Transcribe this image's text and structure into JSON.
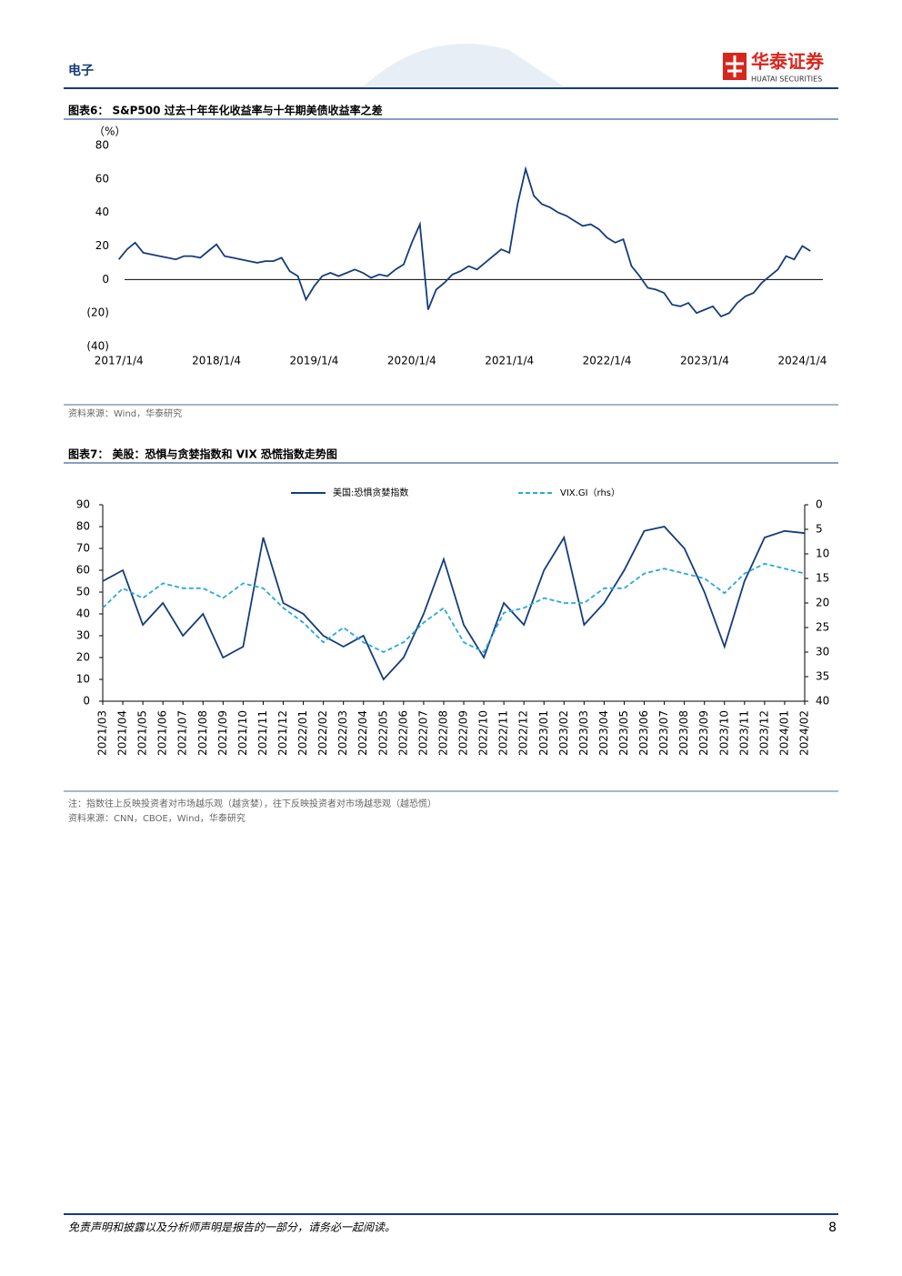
{
  "header": {
    "section": "电子",
    "logo_cn": "华泰证券",
    "logo_en": "HUATAI SECURITIES"
  },
  "chart_data": [
    {
      "type": "line",
      "title": "图表6： S&P500 过去十年年化收益率与十年期美债收益率之差",
      "y_label": "（%）",
      "x": [
        "2017/1/4",
        "2017/2/4",
        "2017/3/4",
        "2017/4/4",
        "2017/5/4",
        "2017/6/4",
        "2017/7/4",
        "2017/8/4",
        "2017/9/4",
        "2017/10/4",
        "2017/11/4",
        "2017/12/4",
        "2018/1/4",
        "2018/2/4",
        "2018/3/4",
        "2018/4/4",
        "2018/5/4",
        "2018/6/4",
        "2018/7/4",
        "2018/8/4",
        "2018/9/4",
        "2018/10/4",
        "2018/11/4",
        "2018/12/4",
        "2019/1/4",
        "2019/2/4",
        "2019/3/4",
        "2019/4/4",
        "2019/5/4",
        "2019/6/4",
        "2019/7/4",
        "2019/8/4",
        "2019/9/4",
        "2019/10/4",
        "2019/11/4",
        "2019/12/4",
        "2020/1/4",
        "2020/2/4",
        "2020/3/4",
        "2020/4/4",
        "2020/5/4",
        "2020/6/4",
        "2020/7/4",
        "2020/8/4",
        "2020/9/4",
        "2020/10/4",
        "2020/11/4",
        "2020/12/4",
        "2021/1/4",
        "2021/2/4",
        "2021/3/4",
        "2021/4/4",
        "2021/5/4",
        "2021/6/4",
        "2021/7/4",
        "2021/8/4",
        "2021/9/4",
        "2021/10/4",
        "2021/11/4",
        "2021/12/4",
        "2022/1/4",
        "2022/2/4",
        "2022/3/4",
        "2022/4/4",
        "2022/5/4",
        "2022/6/4",
        "2022/7/4",
        "2022/8/4",
        "2022/9/4",
        "2022/10/4",
        "2022/11/4",
        "2022/12/4",
        "2023/1/4",
        "2023/2/4",
        "2023/3/4",
        "2023/4/4",
        "2023/5/4",
        "2023/6/4",
        "2023/7/4",
        "2023/8/4",
        "2023/9/4",
        "2023/10/4",
        "2023/11/4",
        "2023/12/4",
        "2024/1/4",
        "2024/2/4"
      ],
      "series": [
        {
          "color": "#143d7a",
          "values": [
            12,
            18,
            22,
            16,
            15,
            14,
            13,
            12,
            14,
            14,
            13,
            17,
            21,
            14,
            13,
            12,
            11,
            10,
            11,
            11,
            13,
            5,
            2,
            -12,
            -4,
            2,
            4,
            2,
            4,
            6,
            4,
            1,
            3,
            2,
            6,
            9,
            22,
            33,
            -18,
            -6,
            -2,
            3,
            5,
            8,
            6,
            10,
            14,
            18,
            16,
            45,
            66,
            50,
            45,
            43,
            40,
            38,
            35,
            32,
            33,
            30,
            25,
            22,
            24,
            8,
            2,
            -5,
            -6,
            -8,
            -15,
            -16,
            -14,
            -20,
            -18,
            -16,
            -22,
            -20,
            -14,
            -10,
            -8,
            -2,
            2,
            6,
            14,
            12,
            20,
            17
          ]
        }
      ],
      "xlim": [
        "2016/12/15",
        "2024/3/20"
      ],
      "xticks": [
        "2017/1/4",
        "2018/1/4",
        "2019/1/4",
        "2020/1/4",
        "2021/1/4",
        "2022/1/4",
        "2023/1/4",
        "2024/1/4"
      ],
      "ylim": [
        -40,
        80
      ],
      "yticks": [
        80,
        60,
        40,
        20,
        0,
        {
          "value": -20,
          "label": "(20)"
        },
        {
          "value": -40,
          "label": "(40)"
        }
      ],
      "source": "资料来源：Wind，华泰研究"
    },
    {
      "type": "line",
      "title": "图表7： 美股：恐惧与贪婪指数和 VIX 恐慌指数走势图",
      "categories": [
        "2021/03",
        "2021/04",
        "2021/05",
        "2021/06",
        "2021/07",
        "2021/08",
        "2021/09",
        "2021/10",
        "2021/11",
        "2021/12",
        "2022/01",
        "2022/02",
        "2022/03",
        "2022/04",
        "2022/05",
        "2022/06",
        "2022/07",
        "2022/08",
        "2022/09",
        "2022/10",
        "2022/11",
        "2022/12",
        "2023/01",
        "2023/02",
        "2023/03",
        "2023/04",
        "2023/05",
        "2023/06",
        "2023/07",
        "2023/08",
        "2023/09",
        "2023/10",
        "2023/11",
        "2023/12",
        "2024/01",
        "2024/02"
      ],
      "series": [
        {
          "name": "美国:恐惧贪婪指数",
          "color": "#143d7a",
          "values": [
            55,
            60,
            35,
            45,
            30,
            40,
            20,
            25,
            75,
            45,
            40,
            30,
            25,
            30,
            10,
            20,
            40,
            65,
            35,
            20,
            45,
            35,
            60,
            75,
            35,
            45,
            60,
            78,
            80,
            70,
            50,
            25,
            55,
            75,
            78,
            77
          ]
        },
        {
          "name": "VIX.GI（rhs）",
          "color": "#29a8e0",
          "dashed": true,
          "axis": "y2",
          "values": [
            21,
            17,
            19,
            16,
            17,
            17,
            19,
            16,
            17,
            21,
            24,
            28,
            25,
            28,
            30,
            28,
            24,
            21,
            28,
            30,
            22,
            21,
            19,
            20,
            20,
            17,
            17,
            14,
            13,
            14,
            15,
            18,
            14,
            12,
            13,
            14
          ]
        }
      ],
      "ylim": [
        0,
        90
      ],
      "yticks": [
        0,
        10,
        20,
        30,
        40,
        50,
        60,
        70,
        80,
        90
      ],
      "y2lim": [
        0,
        40
      ],
      "y2ticks": [
        0,
        5,
        10,
        15,
        20,
        25,
        30,
        35,
        40
      ],
      "y2_inverted": true,
      "legend": "top",
      "note": "注：指数往上反映投资者对市场越乐观（越贪婪），往下反映投资者对市场越悲观（越恐慌）",
      "source": "资料来源：CNN，CBOE，Wind，华泰研究"
    }
  ],
  "footer": {
    "disclaimer": "免责声明和披露以及分析师声明是报告的一部分，请务必一起阅读。",
    "page": "8"
  }
}
